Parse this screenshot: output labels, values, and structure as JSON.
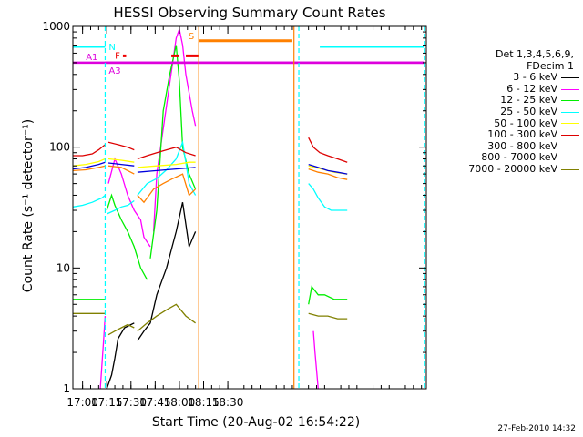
{
  "chart_data": {
    "type": "line",
    "title": "HESSI Observing Summary Count Rates",
    "xlabel": "Start Time (20-Aug-02 16:54:22)",
    "ylabel": "Count Rate (s⁻¹ detector⁻¹)",
    "yscale": "log",
    "ylim": [
      1,
      1000
    ],
    "xlim_minutes_of_day": [
      1014,
      1233
    ],
    "x_ticks": [
      "17:00",
      "17:15",
      "17:30",
      "17:45",
      "18:00",
      "18:15",
      "18:30"
    ],
    "y_ticks": [
      "1",
      "10",
      "100",
      "1000"
    ],
    "legend_header": [
      "Det 1,3,4,5,6,9,",
      "FDecim 1"
    ],
    "legend_position": "right",
    "grid": false,
    "series": [
      {
        "name": "3 - 6 keV",
        "color": "#000000",
        "segments": [
          {
            "x": [
              1035,
              1038,
              1040,
              1042,
              1046,
              1050,
              1052
            ],
            "y": [
              1,
              1.3,
              1.8,
              2.6,
              3.2,
              3.4,
              3.5
            ]
          },
          {
            "x": [
              1054,
              1058,
              1062,
              1066,
              1072,
              1078,
              1082,
              1086,
              1090
            ],
            "y": [
              2.5,
              3,
              3.5,
              6,
              10,
              20,
              35,
              15,
              20
            ]
          }
        ]
      },
      {
        "name": "6 - 12 keV",
        "color": "#ff00ff",
        "segments": [
          {
            "x": [
              1031,
              1033,
              1034
            ],
            "y": [
              1,
              2.5,
              4
            ]
          },
          {
            "x": [
              1036,
              1040,
              1044,
              1048,
              1052,
              1056,
              1058,
              1062
            ],
            "y": [
              50,
              80,
              60,
              40,
              30,
              25,
              18,
              15
            ]
          },
          {
            "x": [
              1064,
              1066,
              1078,
              1080,
              1082,
              1084,
              1088,
              1090
            ],
            "y": [
              20,
              60,
              800,
              950,
              700,
              400,
              200,
              150
            ]
          },
          {
            "x": [
              1163,
              1164,
              1166
            ],
            "y": [
              3,
              2,
              1
            ]
          }
        ]
      },
      {
        "name": "12 - 25 keV",
        "color": "#00ee00",
        "segments": [
          {
            "x": [
              1014,
              1020,
              1026,
              1032,
              1034
            ],
            "y": [
              5.5,
              5.5,
              5.5,
              5.5,
              5.5
            ]
          },
          {
            "x": [
              1035,
              1038,
              1040,
              1044,
              1048,
              1052,
              1056,
              1060
            ],
            "y": [
              30,
              40,
              33,
              25,
              20,
              15,
              10,
              8
            ]
          },
          {
            "x": [
              1062,
              1066,
              1070,
              1074,
              1078,
              1080,
              1082,
              1086,
              1090
            ],
            "y": [
              12,
              30,
              200,
              400,
              700,
              350,
              100,
              60,
              45
            ]
          },
          {
            "x": [
              1160,
              1162,
              1166,
              1170,
              1176,
              1180,
              1184
            ],
            "y": [
              5,
              7,
              6,
              6,
              5.5,
              5.5,
              5.5
            ]
          }
        ]
      },
      {
        "name": "25 - 50 keV",
        "color": "#00ffff",
        "segments": [
          {
            "x": [
              1014,
              1020,
              1026,
              1032,
              1034
            ],
            "y": [
              32,
              33,
              35,
              38,
              40
            ]
          },
          {
            "x": [
              1035,
              1040,
              1044,
              1048,
              1052
            ],
            "y": [
              28,
              30,
              32,
              33,
              36
            ]
          },
          {
            "x": [
              1054,
              1060,
              1066,
              1072,
              1078,
              1082,
              1086,
              1090
            ],
            "y": [
              40,
              50,
              55,
              65,
              80,
              110,
              50,
              40
            ]
          },
          {
            "x": [
              1160,
              1163,
              1166,
              1170,
              1174,
              1178,
              1184
            ],
            "y": [
              50,
              45,
              38,
              32,
              30,
              30,
              30
            ]
          }
        ]
      },
      {
        "name": "50 - 100 keV",
        "color": "#ffff00",
        "segments": [
          {
            "x": [
              1014,
              1022,
              1030,
              1034
            ],
            "y": [
              70,
              72,
              76,
              80
            ]
          },
          {
            "x": [
              1036,
              1044,
              1052
            ],
            "y": [
              80,
              78,
              75
            ]
          },
          {
            "x": [
              1054,
              1066,
              1078,
              1086,
              1090
            ],
            "y": [
              68,
              70,
              72,
              75,
              75
            ]
          },
          {
            "x": [
              1160,
              1168,
              1176,
              1184
            ],
            "y": [
              70,
              66,
              62,
              60
            ]
          }
        ]
      },
      {
        "name": "100 - 300 keV",
        "color": "#dd0000",
        "segments": [
          {
            "x": [
              1014,
              1020,
              1026,
              1030,
              1034
            ],
            "y": [
              85,
              85,
              88,
              95,
              105
            ]
          },
          {
            "x": [
              1036,
              1042,
              1048,
              1052
            ],
            "y": [
              110,
              105,
              100,
              95
            ]
          },
          {
            "x": [
              1054,
              1060,
              1066,
              1072,
              1078,
              1084,
              1090
            ],
            "y": [
              80,
              85,
              90,
              95,
              100,
              90,
              85
            ]
          },
          {
            "x": [
              1160,
              1163,
              1167,
              1172,
              1178,
              1184
            ],
            "y": [
              120,
              100,
              90,
              85,
              80,
              75
            ]
          }
        ]
      },
      {
        "name": "300 - 800 keV",
        "color": "#0000dd",
        "segments": [
          {
            "x": [
              1014,
              1022,
              1030,
              1034
            ],
            "y": [
              66,
              68,
              72,
              75
            ]
          },
          {
            "x": [
              1036,
              1044,
              1052
            ],
            "y": [
              74,
              72,
              70
            ]
          },
          {
            "x": [
              1054,
              1066,
              1078,
              1090
            ],
            "y": [
              62,
              64,
              66,
              68
            ]
          },
          {
            "x": [
              1160,
              1166,
              1172,
              1178,
              1184
            ],
            "y": [
              72,
              68,
              64,
              62,
              60
            ]
          }
        ]
      },
      {
        "name": "800 - 7000 keV",
        "color": "#ff8000",
        "segments": [
          {
            "x": [
              1014,
              1022,
              1030,
              1034
            ],
            "y": [
              64,
              65,
              68,
              70
            ]
          },
          {
            "x": [
              1036,
              1044,
              1052
            ],
            "y": [
              70,
              68,
              60
            ]
          },
          {
            "x": [
              1054,
              1058,
              1064,
              1070,
              1076,
              1082,
              1086,
              1090
            ],
            "y": [
              40,
              35,
              45,
              50,
              55,
              60,
              40,
              45
            ]
          },
          {
            "x": [
              1160,
              1166,
              1172,
              1178,
              1184
            ],
            "y": [
              66,
              62,
              60,
              56,
              54
            ]
          }
        ]
      },
      {
        "name": "7000 - 20000 keV",
        "color": "#808000",
        "segments": [
          {
            "x": [
              1014,
              1020,
              1026,
              1032,
              1034
            ],
            "y": [
              4.2,
              4.2,
              4.2,
              4.2,
              4.2
            ]
          },
          {
            "x": [
              1036,
              1040,
              1044,
              1048,
              1052
            ],
            "y": [
              2.8,
              3,
              3.2,
              3.4,
              3.2
            ]
          },
          {
            "x": [
              1054,
              1060,
              1066,
              1072,
              1078,
              1084,
              1090
            ],
            "y": [
              3,
              3.5,
              4,
              4.5,
              5,
              4,
              3.5
            ]
          },
          {
            "x": [
              1160,
              1166,
              1172,
              1178,
              1184
            ],
            "y": [
              4.2,
              4,
              4,
              3.8,
              3.8
            ]
          }
        ]
      }
    ],
    "annotations": {
      "attenuator": [
        {
          "label": "A1",
          "color": "#dd00dd",
          "x": [
            1014,
            1232
          ],
          "y": 500
        },
        {
          "label": "A3",
          "color": "#dd00dd",
          "x": [
            1034,
            1232
          ],
          "y": 500
        }
      ],
      "night_bars": [
        {
          "label": "N",
          "color": "#00ffff",
          "x": [
            1014,
            1034
          ],
          "y": 680
        },
        {
          "label": "",
          "color": "#00ffff",
          "x": [
            1167,
            1232
          ],
          "y": 680
        }
      ],
      "flare_bars": [
        {
          "label": "F",
          "color": "#ee0000",
          "x": [
            1045,
            1047
          ],
          "y": 570
        },
        {
          "label": "",
          "color": "#ee0000",
          "x": [
            1075,
            1080
          ],
          "y": 570
        },
        {
          "label": "",
          "color": "#ee0000",
          "x": [
            1084,
            1092
          ],
          "y": 570
        }
      ],
      "saa_bars": [
        {
          "label": "S",
          "color": "#ff8000",
          "x": [
            1092,
            1150
          ],
          "y": 760
        }
      ],
      "vlines": [
        {
          "color": "#00ffff",
          "style": "dashed",
          "x": 1034
        },
        {
          "color": "#ff8000",
          "style": "solid",
          "x": 1092
        },
        {
          "color": "#ff8000",
          "style": "solid",
          "x": 1151
        },
        {
          "color": "#00ffff",
          "style": "dashed",
          "x": 1154
        },
        {
          "color": "#00ffff",
          "style": "dashed",
          "x": 1232
        }
      ]
    }
  },
  "timestamp": "27-Feb-2010 14:32"
}
